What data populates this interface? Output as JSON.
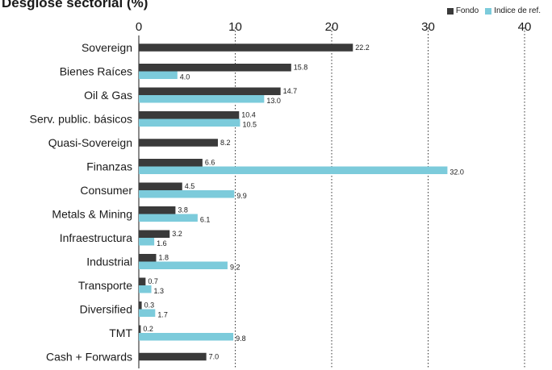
{
  "chart_data": {
    "type": "bar",
    "orientation": "horizontal",
    "title": "Desglose sectorial (%)",
    "categories": [
      "Sovereign",
      "Bienes Raíces",
      "Oil & Gas",
      "Serv. public. básicos",
      "Quasi-Sovereign",
      "Finanzas",
      "Consumer",
      "Metals & Mining",
      "Infraestructura",
      "Industrial",
      "Transporte",
      "Diversified",
      "TMT",
      "Cash + Forwards"
    ],
    "series": [
      {
        "name": "Fondo",
        "color": "#3a3a3a",
        "values": [
          22.2,
          15.8,
          14.7,
          10.4,
          8.2,
          6.6,
          4.5,
          3.8,
          3.2,
          1.8,
          0.7,
          0.3,
          0.2,
          7.0
        ]
      },
      {
        "name": "Indice de ref.",
        "color": "#7ccbdb",
        "values": [
          null,
          4.0,
          13.0,
          10.5,
          null,
          32.0,
          9.9,
          6.1,
          1.6,
          9.2,
          1.3,
          1.7,
          9.8,
          null
        ]
      }
    ],
    "value_labels": {
      "Fondo": [
        "22.2",
        "15.8",
        "14.7",
        "10.4",
        "8.2",
        "6.6",
        "4.5",
        "3.8",
        "3.2",
        "1.8",
        "0.7",
        "0.3",
        "0.2",
        "7.0"
      ],
      "Indice de ref.": [
        null,
        "4.0",
        "13.0",
        "10.5",
        null,
        "32.0",
        "9.9",
        "6.1",
        "1.6",
        "9.2",
        "1.3",
        "1.7",
        "9.8",
        null
      ]
    },
    "xlim": [
      0,
      40
    ],
    "xticks": [
      0,
      10,
      20,
      30,
      40
    ],
    "tick_labels": [
      "0",
      "10",
      "20",
      "30",
      "40"
    ],
    "grid": "vertical dotted",
    "legend_position": "top-right"
  }
}
